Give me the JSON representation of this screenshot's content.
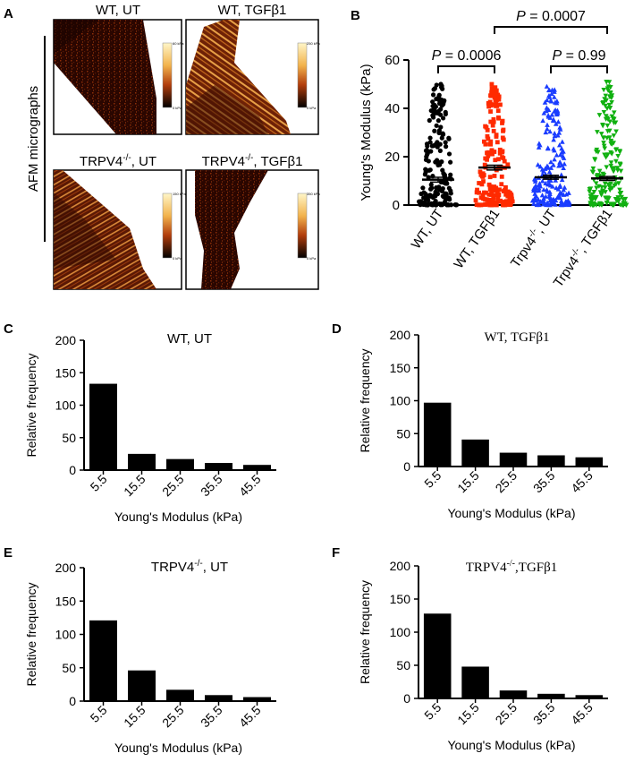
{
  "colors": {
    "micrograph_dark": "#2a0600",
    "micrograph_mid": "#8a2d08",
    "micrograph_light": "#e8a046",
    "scale_top": "#fff6c8",
    "scale_bottom": "#000000",
    "wt_ut": "#000000",
    "wt_tgf": "#ff2a00",
    "trpv4_ut": "#1a3cff",
    "trpv4_tgf": "#10b010"
  },
  "panel_a": {
    "letter": "A",
    "side_label": "AFM micrographs",
    "micrographs": [
      {
        "title_main": "WT, UT",
        "title_sup": "",
        "title_rest": "",
        "scale_top": "60 kPa",
        "scale_bottom": "0 kPa"
      },
      {
        "title_main": "WT, TGFβ1",
        "title_sup": "",
        "title_rest": "",
        "scale_top": "250 kPa",
        "scale_bottom": "0 kPa"
      },
      {
        "title_main": "TRPV4",
        "title_sup": "-/-",
        "title_rest": ", UT",
        "scale_top": "150 kPa",
        "scale_bottom": "0 kPa"
      },
      {
        "title_main": "TRPV4",
        "title_sup": "-/-",
        "title_rest": ", TGFβ1",
        "scale_top": "350 kPa",
        "scale_bottom": "0 kPa"
      }
    ]
  },
  "chart_data": [
    {
      "id": "B",
      "type": "scatter",
      "title": "",
      "ylabel": "Young's Modulus (kPa)",
      "xlabel": "",
      "ylim": [
        0,
        60
      ],
      "yticks": [
        0,
        20,
        40,
        60
      ],
      "categories": [
        "WT, UT",
        "WT, TGFβ1",
        "Trpv4-/-, UT",
        "Trpv4-/-, TGFβ1"
      ],
      "category_parts": [
        {
          "main": "WT, UT",
          "sup": "",
          "rest": ""
        },
        {
          "main": "WT, TGFβ1",
          "sup": "",
          "rest": ""
        },
        {
          "main": "Trpv4",
          "sup": "-/-",
          "rest": ", UT"
        },
        {
          "main": "Trpv4",
          "sup": "-/-",
          "rest": ", TGFβ1"
        }
      ],
      "series": [
        {
          "name": "WT, UT",
          "marker": "circle",
          "mean": 10.5,
          "sem": 1.0,
          "n": 190,
          "max": 50
        },
        {
          "name": "WT, TGFβ1",
          "marker": "square",
          "mean": 15.5,
          "sem": 1.0,
          "n": 190,
          "max": 50
        },
        {
          "name": "Trpv4-/-, UT",
          "marker": "triangle-up",
          "mean": 11.5,
          "sem": 0.8,
          "n": 190,
          "max": 49
        },
        {
          "name": "Trpv4-/-, TGFβ1",
          "marker": "triangle-down",
          "mean": 11.0,
          "sem": 0.8,
          "n": 190,
          "max": 51
        }
      ],
      "comparisons": [
        {
          "p_label": "P",
          "p_value": " = 0.0006",
          "from": 0,
          "to": 1,
          "level": 1
        },
        {
          "p_label": "P",
          "p_value": " = 0.99",
          "from": 2,
          "to": 3,
          "level": 1
        },
        {
          "p_label": "P",
          "p_value": " = 0.0007",
          "from": 1,
          "to": 3,
          "level": 2
        }
      ]
    },
    {
      "id": "C",
      "type": "bar",
      "title": "WT, UT",
      "title_sup": "",
      "title_rest": "",
      "xlabel": "Young's Modulus (kPa)",
      "ylabel": "Relative frequency",
      "categories": [
        "5.5",
        "15.5",
        "25.5",
        "35.5",
        "45.5"
      ],
      "values": [
        133,
        25,
        17,
        11,
        8
      ],
      "ylim": [
        0,
        200
      ],
      "yticks": [
        0,
        50,
        100,
        150,
        200
      ]
    },
    {
      "id": "D",
      "type": "bar",
      "title": "WT, TGFβ1",
      "title_sup": "",
      "title_rest": "",
      "xlabel": "Young's Modulus (kPa)",
      "ylabel": "Relative frequency",
      "categories": [
        "5.5",
        "15.5",
        "25.5",
        "35.5",
        "45.5"
      ],
      "values": [
        97,
        41,
        21,
        17,
        14
      ],
      "ylim": [
        0,
        200
      ],
      "yticks": [
        0,
        50,
        100,
        150,
        200
      ]
    },
    {
      "id": "E",
      "type": "bar",
      "title": "TRPV4",
      "title_sup": "-/-",
      "title_rest": ", UT",
      "xlabel": "Young's Modulus (kPa)",
      "ylabel": "Relative frequency",
      "categories": [
        "5.5",
        "15.5",
        "25.5",
        "35.5",
        "45.5"
      ],
      "values": [
        121,
        46,
        17,
        9,
        6
      ],
      "ylim": [
        0,
        200
      ],
      "yticks": [
        0,
        50,
        100,
        150,
        200
      ]
    },
    {
      "id": "F",
      "type": "bar",
      "title": "TRPV4",
      "title_sup": "-/-",
      "title_rest": ",TGFβ1",
      "xlabel": "Young's Modulus (kPa)",
      "ylabel": "Relative frequency",
      "categories": [
        "5.5",
        "15.5",
        "25.5",
        "35.5",
        "45.5"
      ],
      "values": [
        128,
        48,
        12,
        7,
        5
      ],
      "ylim": [
        0,
        200
      ],
      "yticks": [
        0,
        50,
        100,
        150,
        200
      ]
    }
  ]
}
